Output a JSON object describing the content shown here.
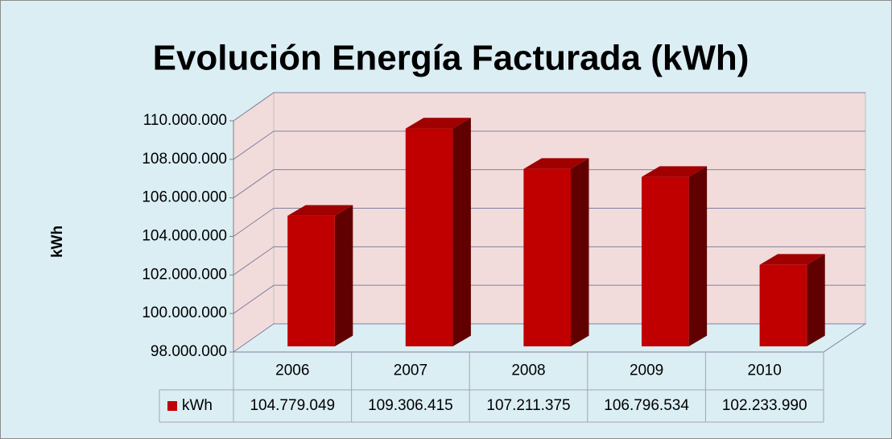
{
  "chart_data": {
    "type": "bar3d",
    "title": "Evolución Energía Facturada (kWh)",
    "y_axis_label": "kWh",
    "categories": [
      "2006",
      "2007",
      "2008",
      "2009",
      "2010"
    ],
    "series": [
      {
        "name": "kWh",
        "color": "#c00000",
        "values": [
          104779049,
          109306415,
          107211375,
          106796534,
          102233990
        ],
        "value_labels": [
          "104.779.049",
          "109.306.415",
          "107.211.375",
          "106.796.534",
          "102.233.990"
        ]
      }
    ],
    "ylim": [
      98000000,
      110000000
    ],
    "yticks": [
      {
        "value": 98000000,
        "label": "98.000.000"
      },
      {
        "value": 100000000,
        "label": "100.000.000"
      },
      {
        "value": 102000000,
        "label": "102.000.000"
      },
      {
        "value": 104000000,
        "label": "104.000.000"
      },
      {
        "value": 106000000,
        "label": "106.000.000"
      },
      {
        "value": 108000000,
        "label": "108.000.000"
      },
      {
        "value": 110000000,
        "label": "110.000.000"
      }
    ],
    "grid": true
  }
}
